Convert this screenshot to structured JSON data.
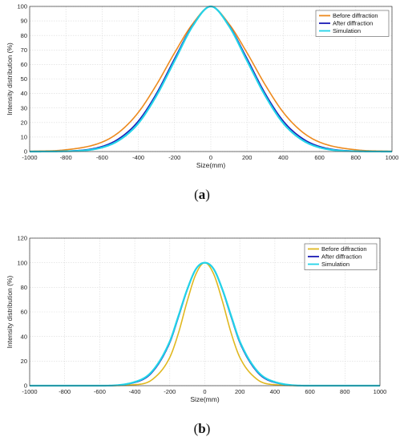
{
  "chart_data": [
    {
      "type": "line",
      "panel_label": "a",
      "xlabel": "Size(mm)",
      "ylabel": "Intensity distribution (%)",
      "xlim": [
        -1000,
        1000
      ],
      "ylim": [
        0,
        100
      ],
      "xticks": [
        "-1000",
        "-800",
        "-600",
        "-400",
        "-200",
        "0",
        "200",
        "400",
        "600",
        "800",
        "1000"
      ],
      "yticks": [
        "0",
        "10",
        "20",
        "30",
        "40",
        "50",
        "60",
        "70",
        "80",
        "90",
        "100"
      ],
      "grid": "on",
      "legend_position": "top-right",
      "x": [
        -1000,
        -800,
        -600,
        -500,
        -400,
        -300,
        -200,
        -100,
        0,
        100,
        200,
        300,
        400,
        500,
        600,
        800,
        1000
      ],
      "series": [
        {
          "name": "Before diffraction",
          "color": "#ED8A1E",
          "values": [
            0.2,
            1.2,
            6.5,
            14,
            27,
            46,
            68,
            88,
            100,
            88,
            68,
            46,
            27,
            14,
            6.5,
            1.2,
            0.2
          ]
        },
        {
          "name": "After diffraction",
          "color": "#1A1AB5",
          "values": [
            0.0,
            0.3,
            3.5,
            9.5,
            21,
            40,
            64,
            87,
            100,
            87,
            64,
            40,
            21,
            9.5,
            3.5,
            0.3,
            0.0
          ]
        },
        {
          "name": "Simulation",
          "color": "#22D3E8",
          "values": [
            0.0,
            0.2,
            2.8,
            8.3,
            19.5,
            38.5,
            62.5,
            86.5,
            100,
            86.5,
            62.5,
            38.5,
            19.5,
            8.3,
            2.8,
            0.2,
            0.0
          ]
        }
      ]
    },
    {
      "type": "line",
      "panel_label": "b",
      "xlabel": "Size(mm)",
      "ylabel": "Intensity distribution (%)",
      "xlim": [
        -1000,
        1000
      ],
      "ylim": [
        0,
        120
      ],
      "xticks": [
        "-1000",
        "-800",
        "-600",
        "-400",
        "-200",
        "0",
        "200",
        "400",
        "600",
        "800",
        "1000"
      ],
      "yticks": [
        "0",
        "20",
        "40",
        "60",
        "80",
        "100",
        "120"
      ],
      "grid": "on",
      "legend_position": "top-right",
      "x": [
        -1000,
        -600,
        -400,
        -300,
        -200,
        -150,
        -100,
        -50,
        0,
        50,
        100,
        150,
        200,
        300,
        400,
        600,
        1000
      ],
      "series": [
        {
          "name": "Before diffraction",
          "color": "#E0B820",
          "values": [
            0,
            0,
            0.8,
            5,
            23,
            43,
            69,
            91,
            100,
            91,
            69,
            43,
            23,
            5,
            0.8,
            0,
            0
          ]
        },
        {
          "name": "After diffraction",
          "color": "#1A1AB5",
          "values": [
            0,
            0,
            2.6,
            11,
            35,
            56,
            78,
            95,
            100,
            95,
            78,
            56,
            35,
            11,
            2.6,
            0,
            0
          ]
        },
        {
          "name": "Simulation",
          "color": "#22D3E8",
          "values": [
            0,
            0,
            3,
            11.8,
            36,
            57,
            78.5,
            95,
            100,
            95,
            78.5,
            57,
            36,
            11.8,
            3,
            0,
            0
          ]
        }
      ]
    }
  ]
}
